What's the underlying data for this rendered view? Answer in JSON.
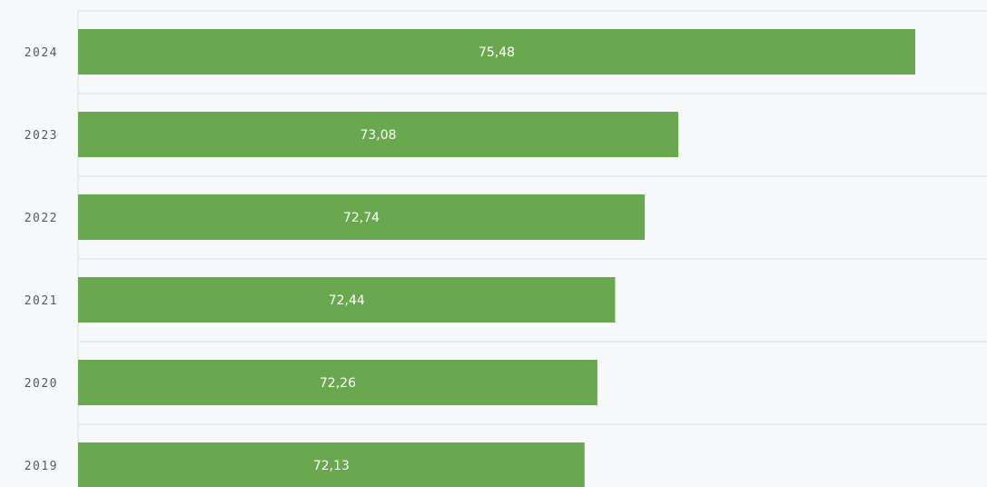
{
  "chart_data": {
    "type": "bar",
    "orientation": "horizontal",
    "categories": [
      "2024",
      "2023",
      "2022",
      "2021",
      "2020",
      "2019"
    ],
    "values": [
      75.48,
      73.08,
      72.74,
      72.44,
      72.26,
      72.13
    ],
    "data_labels": [
      "75,48",
      "73,08",
      "72,74",
      "72,44",
      "72,26",
      "72,13"
    ],
    "bar_color": "#6aa84f",
    "grid": true,
    "legend": "none",
    "xlim": [
      67,
      77
    ]
  }
}
